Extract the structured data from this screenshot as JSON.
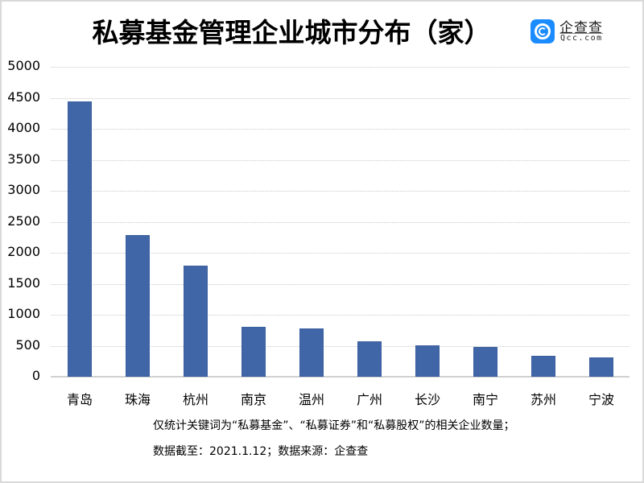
{
  "header": {
    "title": "私募基金管理企业城市分布（家）",
    "logo": {
      "icon": "qcc-logo-icon",
      "name_cn": "企查查",
      "name_en": "Qcc.com",
      "color": "#1a8cff"
    }
  },
  "footer": {
    "note_line1": "仅统计关键词为“私募基金”、“私募证券”和“私募股权”的相关企业数量；",
    "note_line2": "数据截至：2021.1.12；数据来源：企查查"
  },
  "chart_data": {
    "type": "bar",
    "title": "私募基金管理企业城市分布（家）",
    "xlabel": "",
    "ylabel": "",
    "categories": [
      "青岛",
      "珠海",
      "杭州",
      "南京",
      "温州",
      "广州",
      "长沙",
      "南宁",
      "苏州",
      "宁波"
    ],
    "values": [
      4440,
      2285,
      1790,
      805,
      780,
      570,
      505,
      480,
      335,
      310
    ],
    "ylim": [
      0,
      5000
    ],
    "yticks": [
      "0",
      "500",
      "1000",
      "1500",
      "2000",
      "2500",
      "3000",
      "3500",
      "4000",
      "4500",
      "5000"
    ],
    "grid": true,
    "legend": "none",
    "bar_color": "#4066a8"
  }
}
